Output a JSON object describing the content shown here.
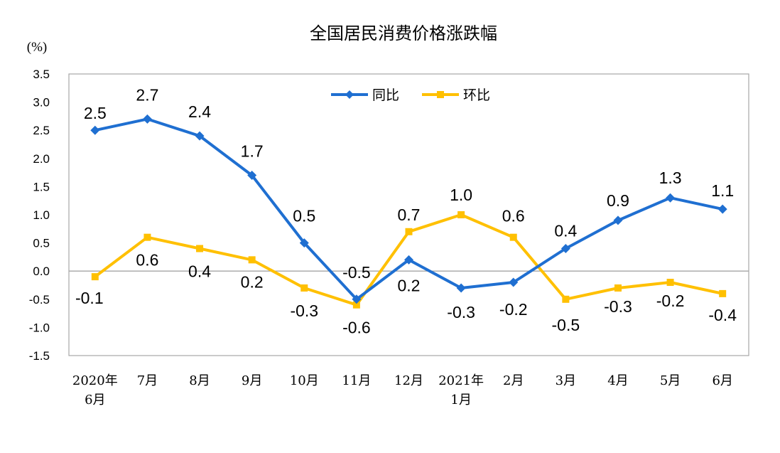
{
  "chart_data": {
    "type": "line",
    "title": "全国居民消费价格涨跌幅",
    "ylabel": "(%)",
    "ylim": [
      -1.5,
      3.5
    ],
    "yticks": [
      "3.5",
      "3.0",
      "2.5",
      "2.0",
      "1.5",
      "1.0",
      "0.5",
      "0.0",
      "-0.5",
      "-1.0",
      "-1.5"
    ],
    "categories": [
      [
        "2020年",
        "6月"
      ],
      [
        "7月"
      ],
      [
        "8月"
      ],
      [
        "9月"
      ],
      [
        "10月"
      ],
      [
        "11月"
      ],
      [
        "12月"
      ],
      [
        "2021年",
        "1月"
      ],
      [
        "2月"
      ],
      [
        "3月"
      ],
      [
        "4月"
      ],
      [
        "5月"
      ],
      [
        "6月"
      ]
    ],
    "series": [
      {
        "name": "同比",
        "color": "#1f6fd1",
        "marker": "diamond",
        "values": [
          2.5,
          2.7,
          2.4,
          1.7,
          0.5,
          -0.5,
          0.2,
          -0.3,
          -0.2,
          0.4,
          0.9,
          1.3,
          1.1
        ],
        "labels": [
          "2.5",
          "2.7",
          "2.4",
          "1.7",
          "0.5",
          "-0.5",
          "",
          "",
          "",
          "0.4",
          "0.9",
          "1.3",
          "1.1"
        ]
      },
      {
        "name": "环比",
        "color": "#ffc000",
        "marker": "square",
        "values": [
          -0.1,
          0.6,
          0.4,
          0.2,
          -0.3,
          -0.6,
          0.7,
          1.0,
          0.6,
          -0.5,
          -0.3,
          -0.2,
          -0.4
        ],
        "labels": [
          "-0.1",
          "0.6",
          "0.4",
          "0.2",
          "-0.3",
          "-0.6",
          "0.7",
          "1.0",
          "0.6",
          "-0.5",
          "-0.3",
          "-0.2",
          "-0.4"
        ]
      }
    ],
    "extra_labels": [
      {
        "series": 0,
        "index": 6,
        "text": "0.2"
      },
      {
        "series": 0,
        "index": 7,
        "text": "-0.3"
      },
      {
        "series": 0,
        "index": 8,
        "text": "-0.2"
      }
    ],
    "legend_position": "top-center",
    "grid": false
  }
}
